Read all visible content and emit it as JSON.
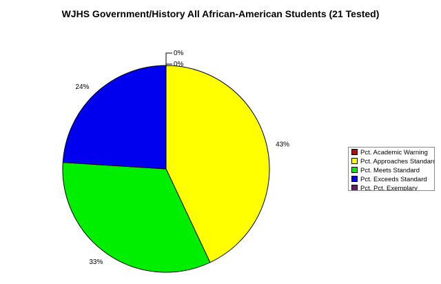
{
  "chart_data": {
    "type": "pie",
    "title": "WJHS Government/History All African-American Students (21 Tested)",
    "slices": [
      {
        "name": "Pct. Academic Warning",
        "value": 0,
        "label": "0%",
        "color": "#cc0000"
      },
      {
        "name": "Pct. Approaches Standard",
        "value": 43,
        "label": "43%",
        "color": "#ffff00"
      },
      {
        "name": "Pct. Meets Standard",
        "value": 33,
        "label": "33%",
        "color": "#00ee00"
      },
      {
        "name": "Pct. Exceeds Standard",
        "value": 24,
        "label": "24%",
        "color": "#0000ee"
      },
      {
        "name": "Pct. Pct. Exemplary",
        "value": 0,
        "label": "0%",
        "color": "#6a1b6a"
      }
    ],
    "legend_position": "right"
  }
}
